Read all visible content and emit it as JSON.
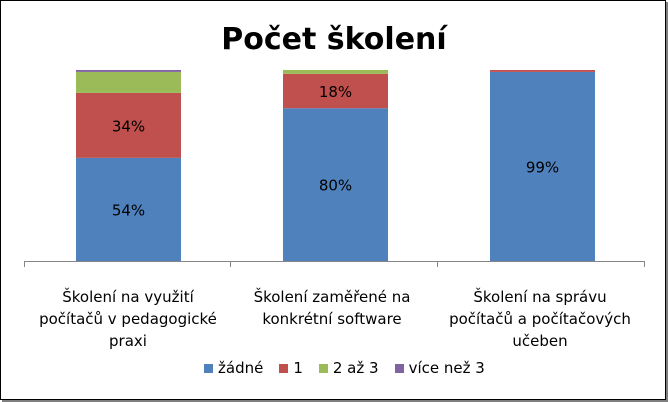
{
  "chart_data": {
    "type": "bar",
    "stacked": true,
    "title": "Počet školení",
    "categories": [
      "Školení na využití počítačů v pedagogické praxi",
      "Školení zaměřené na konkrétní software",
      "Školení na správu počítačů a počítačových učeben"
    ],
    "series": [
      {
        "name": "žádné",
        "color": "#4F81BD",
        "values": [
          54,
          80,
          99
        ],
        "labels": [
          "54%",
          "80%",
          "99%"
        ]
      },
      {
        "name": "1",
        "color": "#C0504D",
        "values": [
          34,
          18,
          1
        ],
        "labels": [
          "34%",
          "18%",
          ""
        ]
      },
      {
        "name": "2 až 3",
        "color": "#9BBB59",
        "values": [
          11,
          2,
          0
        ],
        "labels": [
          "",
          "",
          ""
        ]
      },
      {
        "name": "více než 3",
        "color": "#8064A2",
        "values": [
          1,
          0,
          0
        ],
        "labels": [
          "",
          "",
          ""
        ]
      }
    ],
    "ylim": [
      0,
      100
    ],
    "grid": false,
    "legend": "bottom"
  }
}
